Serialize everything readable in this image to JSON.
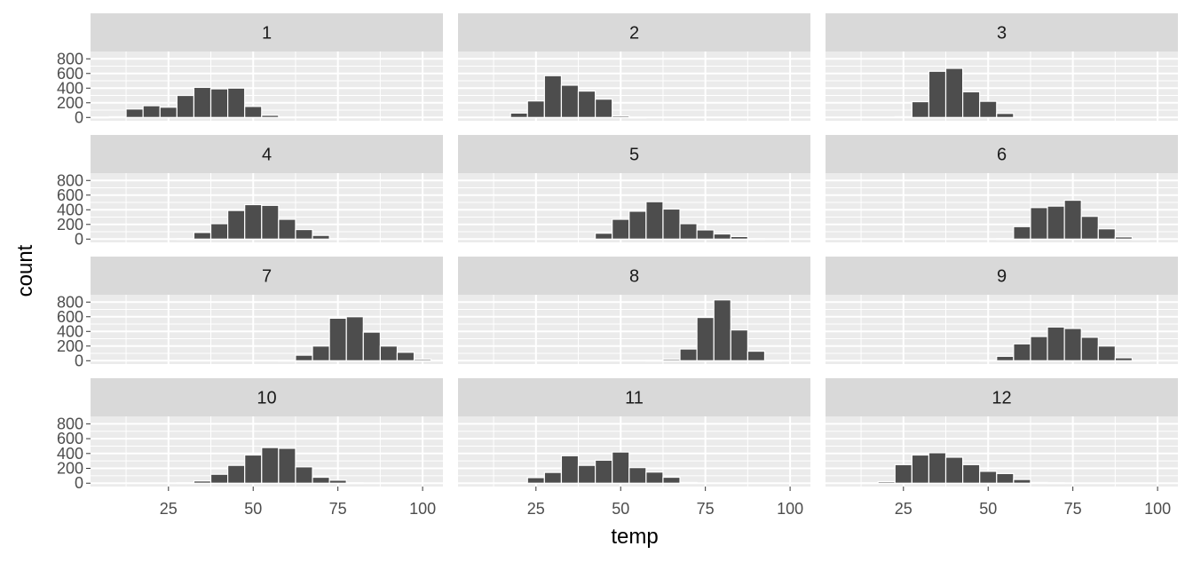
{
  "chart_data": {
    "type": "bar",
    "subtype": "faceted-histogram",
    "xlabel": "temp",
    "ylabel": "count",
    "xlim": [
      2,
      106
    ],
    "ylim": [
      -45,
      900
    ],
    "x_ticks": [
      25,
      50,
      75,
      100
    ],
    "y_ticks": [
      0,
      200,
      400,
      600,
      800
    ],
    "bin_width": 5,
    "colors": {
      "panel_bg": "#ebebeb",
      "strip_bg": "#d9d9d9",
      "bar_fill": "#4d4d4d",
      "bar_outline": "#ffffff",
      "grid": "#ffffff"
    },
    "facets": [
      {
        "label": "1",
        "bins": [
          [
            5,
            3
          ],
          [
            10,
            10
          ],
          [
            15,
            115
          ],
          [
            20,
            160
          ],
          [
            25,
            140
          ],
          [
            30,
            300
          ],
          [
            35,
            410
          ],
          [
            40,
            390
          ],
          [
            45,
            400
          ],
          [
            50,
            150
          ],
          [
            55,
            30
          ],
          [
            60,
            5
          ]
        ]
      },
      {
        "label": "2",
        "bins": [
          [
            15,
            5
          ],
          [
            20,
            60
          ],
          [
            25,
            225
          ],
          [
            30,
            570
          ],
          [
            35,
            440
          ],
          [
            40,
            360
          ],
          [
            45,
            250
          ],
          [
            50,
            20
          ],
          [
            55,
            3
          ]
        ]
      },
      {
        "label": "3",
        "bins": [
          [
            25,
            10
          ],
          [
            30,
            215
          ],
          [
            35,
            630
          ],
          [
            40,
            670
          ],
          [
            45,
            350
          ],
          [
            50,
            220
          ],
          [
            55,
            55
          ],
          [
            60,
            5
          ]
        ]
      },
      {
        "label": "4",
        "bins": [
          [
            30,
            5
          ],
          [
            35,
            90
          ],
          [
            40,
            210
          ],
          [
            45,
            390
          ],
          [
            50,
            470
          ],
          [
            55,
            460
          ],
          [
            60,
            270
          ],
          [
            65,
            130
          ],
          [
            70,
            50
          ],
          [
            75,
            5
          ]
        ]
      },
      {
        "label": "5",
        "bins": [
          [
            40,
            5
          ],
          [
            45,
            80
          ],
          [
            50,
            270
          ],
          [
            55,
            380
          ],
          [
            60,
            510
          ],
          [
            65,
            410
          ],
          [
            70,
            210
          ],
          [
            75,
            125
          ],
          [
            80,
            70
          ],
          [
            85,
            35
          ],
          [
            90,
            5
          ]
        ]
      },
      {
        "label": "6",
        "bins": [
          [
            55,
            5
          ],
          [
            60,
            170
          ],
          [
            65,
            430
          ],
          [
            70,
            450
          ],
          [
            75,
            530
          ],
          [
            80,
            310
          ],
          [
            85,
            140
          ],
          [
            90,
            30
          ],
          [
            95,
            3
          ]
        ]
      },
      {
        "label": "7",
        "bins": [
          [
            60,
            5
          ],
          [
            65,
            75
          ],
          [
            70,
            200
          ],
          [
            75,
            580
          ],
          [
            80,
            600
          ],
          [
            85,
            390
          ],
          [
            90,
            200
          ],
          [
            95,
            115
          ],
          [
            100,
            20
          ]
        ]
      },
      {
        "label": "8",
        "bins": [
          [
            60,
            5
          ],
          [
            65,
            20
          ],
          [
            70,
            160
          ],
          [
            75,
            590
          ],
          [
            80,
            830
          ],
          [
            85,
            420
          ],
          [
            90,
            130
          ],
          [
            95,
            5
          ]
        ]
      },
      {
        "label": "9",
        "bins": [
          [
            50,
            5
          ],
          [
            55,
            60
          ],
          [
            60,
            230
          ],
          [
            65,
            330
          ],
          [
            70,
            460
          ],
          [
            75,
            440
          ],
          [
            80,
            320
          ],
          [
            85,
            200
          ],
          [
            90,
            40
          ],
          [
            95,
            3
          ]
        ]
      },
      {
        "label": "10",
        "bins": [
          [
            30,
            5
          ],
          [
            35,
            30
          ],
          [
            40,
            120
          ],
          [
            45,
            240
          ],
          [
            50,
            380
          ],
          [
            55,
            480
          ],
          [
            60,
            470
          ],
          [
            65,
            220
          ],
          [
            70,
            80
          ],
          [
            75,
            40
          ],
          [
            80,
            5
          ]
        ]
      },
      {
        "label": "11",
        "bins": [
          [
            20,
            5
          ],
          [
            25,
            75
          ],
          [
            30,
            145
          ],
          [
            35,
            370
          ],
          [
            40,
            240
          ],
          [
            45,
            310
          ],
          [
            50,
            420
          ],
          [
            55,
            210
          ],
          [
            60,
            150
          ],
          [
            65,
            80
          ],
          [
            70,
            10
          ]
        ]
      },
      {
        "label": "12",
        "bins": [
          [
            15,
            5
          ],
          [
            20,
            20
          ],
          [
            25,
            250
          ],
          [
            30,
            380
          ],
          [
            35,
            410
          ],
          [
            40,
            350
          ],
          [
            45,
            250
          ],
          [
            50,
            160
          ],
          [
            55,
            130
          ],
          [
            60,
            50
          ],
          [
            65,
            10
          ],
          [
            70,
            5
          ]
        ]
      }
    ]
  }
}
